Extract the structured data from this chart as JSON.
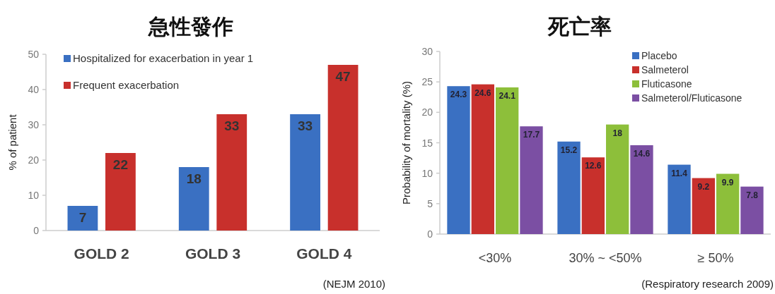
{
  "chart_data": [
    {
      "type": "bar",
      "title": "急性發作",
      "ylabel": "% of patient",
      "categories": [
        "GOLD 2",
        "GOLD 3",
        "GOLD 4"
      ],
      "series": [
        {
          "name": "Hospitalized for exacerbation in year 1",
          "color": "#3a70c2",
          "values": [
            7,
            18,
            33
          ]
        },
        {
          "name": "Frequent exacerbation",
          "color": "#c8302c",
          "values": [
            22,
            33,
            47
          ]
        }
      ],
      "ylim": [
        0,
        50
      ],
      "yticks": [
        0,
        10,
        20,
        30,
        40,
        50
      ],
      "data_labels": true,
      "legend": "top left",
      "annotations": [
        "(NEJM 2010)"
      ]
    },
    {
      "type": "bar",
      "title": "死亡率",
      "ylabel": "Probability of mortality (%)",
      "categories": [
        "<30%",
        "30% ~ <50%",
        "≥ 50%"
      ],
      "series": [
        {
          "name": "Placebo",
          "color": "#3a70c2",
          "values": [
            24.3,
            15.2,
            11.4
          ]
        },
        {
          "name": "Salmeterol",
          "color": "#c8302c",
          "values": [
            24.6,
            12.6,
            9.2
          ]
        },
        {
          "name": "Fluticasone",
          "color": "#8dbf3a",
          "values": [
            24.1,
            18,
            9.9
          ]
        },
        {
          "name": "Salmeterol/Fluticasone",
          "color": "#7b4fa3",
          "values": [
            17.7,
            14.6,
            7.8
          ]
        }
      ],
      "ylim": [
        0,
        30
      ],
      "yticks": [
        0,
        5,
        10,
        15,
        20,
        25,
        30
      ],
      "data_labels": true,
      "legend": "top right",
      "annotations": [
        "(Respiratory research  2009)"
      ]
    }
  ]
}
